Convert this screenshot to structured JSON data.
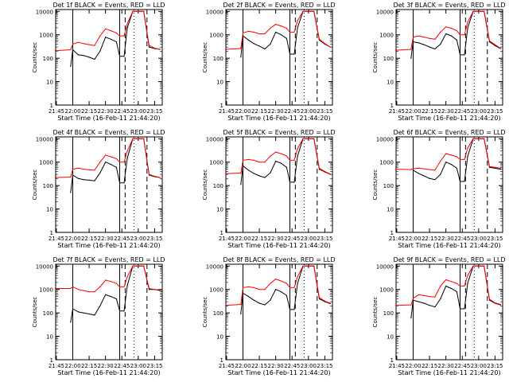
{
  "xlabel": "Start Time (16-Feb-11 21:44:20)",
  "ylabel": "Counts/sec",
  "x_ticks": [
    "21:45",
    "22:00",
    "22:15",
    "22:30",
    "22:45",
    "23:00",
    "23:15"
  ],
  "y_ticks": [
    "1",
    "10",
    "100",
    "1000",
    "10000"
  ],
  "colors": {
    "events": "#000000",
    "lld": "#ff0000"
  },
  "chart_data": [
    {
      "type": "line",
      "title": "Det  1f  BLACK = Events, RED = LLD",
      "xlim": [
        "21:44:20",
        "23:22:00"
      ],
      "ylim": [
        1,
        12000
      ],
      "yscale": "log",
      "x": [
        "21:44",
        "21:58",
        "22:00",
        "22:05",
        "22:10",
        "22:15",
        "22:20",
        "22:25",
        "22:30",
        "22:35",
        "22:40",
        "22:43",
        "22:47",
        "22:50",
        "22:55",
        "23:00",
        "23:05",
        "23:10",
        "23:15",
        "23:20"
      ],
      "series": [
        {
          "name": "Events",
          "values": [
            null,
            45,
            230,
            140,
            130,
            110,
            90,
            200,
            800,
            650,
            500,
            120,
            120,
            2000,
            10000,
            10000,
            10000,
            300,
            260,
            240
          ]
        },
        {
          "name": "LLD",
          "values": [
            210,
            230,
            400,
            480,
            420,
            380,
            350,
            900,
            1800,
            1500,
            1200,
            900,
            900,
            3000,
            10000,
            10000,
            10000,
            350,
            270,
            240
          ]
        }
      ]
    },
    {
      "type": "line",
      "title": "Det  2f  BLACK = Events, RED = LLD",
      "xlim": [
        "21:44:20",
        "23:22:00"
      ],
      "ylim": [
        1,
        12000
      ],
      "yscale": "log",
      "x": [
        "21:44",
        "21:58",
        "22:00",
        "22:05",
        "22:10",
        "22:15",
        "22:20",
        "22:25",
        "22:30",
        "22:35",
        "22:40",
        "22:43",
        "22:47",
        "22:50",
        "22:55",
        "23:00",
        "23:05",
        "23:10",
        "23:15",
        "23:20"
      ],
      "series": [
        {
          "name": "Events",
          "values": [
            null,
            110,
            900,
            600,
            420,
            330,
            250,
            400,
            1300,
            1000,
            700,
            150,
            150,
            2000,
            10000,
            10000,
            10000,
            600,
            400,
            300
          ]
        },
        {
          "name": "LLD",
          "values": [
            240,
            260,
            1200,
            1400,
            1300,
            1100,
            1100,
            1900,
            2800,
            2400,
            1900,
            1300,
            1300,
            4000,
            10000,
            10000,
            10000,
            650,
            420,
            300
          ]
        }
      ]
    },
    {
      "type": "line",
      "title": "Det  3f  BLACK = Events, RED = LLD",
      "xlim": [
        "21:44:20",
        "23:22:00"
      ],
      "ylim": [
        1,
        12000
      ],
      "yscale": "log",
      "x": [
        "21:44",
        "21:58",
        "22:00",
        "22:05",
        "22:10",
        "22:15",
        "22:20",
        "22:25",
        "22:30",
        "22:35",
        "22:40",
        "22:43",
        "22:47",
        "22:50",
        "22:55",
        "23:00",
        "23:05",
        "23:10",
        "23:15",
        "23:20"
      ],
      "series": [
        {
          "name": "Events",
          "values": [
            null,
            100,
            500,
            450,
            380,
            300,
            250,
            400,
            1100,
            900,
            600,
            140,
            140,
            2000,
            10000,
            10000,
            10000,
            500,
            350,
            260
          ]
        },
        {
          "name": "LLD",
          "values": [
            220,
            240,
            800,
            900,
            800,
            700,
            650,
            1300,
            2200,
            1900,
            1500,
            1000,
            1000,
            3500,
            10000,
            10000,
            10000,
            550,
            380,
            270
          ]
        }
      ]
    },
    {
      "type": "line",
      "title": "Det  4f  BLACK = Events, RED = LLD",
      "xlim": [
        "21:44:20",
        "23:22:00"
      ],
      "ylim": [
        1,
        12000
      ],
      "yscale": "log",
      "x": [
        "21:44",
        "21:58",
        "22:00",
        "22:05",
        "22:10",
        "22:15",
        "22:20",
        "22:25",
        "22:30",
        "22:35",
        "22:40",
        "22:43",
        "22:47",
        "22:50",
        "22:55",
        "23:00",
        "23:05",
        "23:10",
        "23:15",
        "23:20"
      ],
      "series": [
        {
          "name": "Events",
          "values": [
            null,
            50,
            280,
            200,
            180,
            170,
            160,
            350,
            1000,
            800,
            600,
            130,
            130,
            1500,
            10000,
            10000,
            10000,
            280,
            240,
            220
          ]
        },
        {
          "name": "LLD",
          "values": [
            220,
            230,
            500,
            560,
            500,
            470,
            450,
            1000,
            2000,
            1700,
            1400,
            1000,
            1000,
            3000,
            10000,
            10000,
            10000,
            300,
            250,
            220
          ]
        }
      ]
    },
    {
      "type": "line",
      "title": "Det  5f  BLACK = Events, RED = LLD",
      "xlim": [
        "21:44:20",
        "23:22:00"
      ],
      "ylim": [
        1,
        12000
      ],
      "yscale": "log",
      "x": [
        "21:44",
        "21:58",
        "22:00",
        "22:05",
        "22:10",
        "22:15",
        "22:20",
        "22:25",
        "22:30",
        "22:35",
        "22:40",
        "22:43",
        "22:47",
        "22:50",
        "22:55",
        "23:00",
        "23:05",
        "23:10",
        "23:15",
        "23:20"
      ],
      "series": [
        {
          "name": "Events",
          "values": [
            null,
            110,
            700,
            450,
            330,
            260,
            220,
            350,
            1100,
            900,
            600,
            140,
            140,
            1800,
            10000,
            10000,
            10000,
            500,
            380,
            300
          ]
        },
        {
          "name": "LLD",
          "values": [
            320,
            340,
            1200,
            1300,
            1200,
            1000,
            1000,
            1800,
            2700,
            2300,
            1800,
            1200,
            1200,
            3800,
            10000,
            10000,
            10000,
            550,
            400,
            310
          ]
        }
      ]
    },
    {
      "type": "line",
      "title": "Det  6f  BLACK = Events, RED = LLD",
      "xlim": [
        "21:44:20",
        "23:22:00"
      ],
      "ylim": [
        1,
        12000
      ],
      "yscale": "log",
      "x": [
        "21:44",
        "21:58",
        "22:00",
        "22:05",
        "22:10",
        "22:15",
        "22:20",
        "22:25",
        "22:30",
        "22:35",
        "22:40",
        "22:43",
        "22:47",
        "22:50",
        "22:55",
        "23:00",
        "23:05",
        "23:10",
        "23:15",
        "23:20"
      ],
      "series": [
        {
          "name": "Events",
          "values": [
            null,
            null,
            450,
            330,
            260,
            200,
            180,
            300,
            1000,
            800,
            550,
            150,
            150,
            1800,
            10000,
            10000,
            10000,
            600,
            550,
            500
          ]
        },
        {
          "name": "LLD",
          "values": [
            500,
            480,
            520,
            560,
            520,
            480,
            460,
            1100,
            2300,
            2000,
            1700,
            1300,
            1300,
            4000,
            10000,
            10000,
            10000,
            650,
            600,
            560
          ]
        }
      ]
    },
    {
      "type": "line",
      "title": "Det  7f  BLACK = Events, RED = LLD",
      "xlim": [
        "21:44:20",
        "23:22:00"
      ],
      "ylim": [
        1,
        12000
      ],
      "yscale": "log",
      "x": [
        "21:44",
        "21:58",
        "22:00",
        "22:05",
        "22:10",
        "22:15",
        "22:20",
        "22:25",
        "22:30",
        "22:35",
        "22:40",
        "22:43",
        "22:47",
        "22:50",
        "22:55",
        "23:00",
        "23:05",
        "23:10",
        "23:15",
        "23:20"
      ],
      "series": [
        {
          "name": "Events",
          "values": [
            null,
            40,
            150,
            110,
            100,
            90,
            80,
            200,
            600,
            500,
            400,
            120,
            120,
            1500,
            10000,
            10000,
            10000,
            1000,
            1000,
            900
          ]
        },
        {
          "name": "LLD",
          "values": [
            1100,
            1100,
            1300,
            1000,
            900,
            800,
            800,
            1300,
            2500,
            2200,
            1800,
            1300,
            1300,
            3500,
            10000,
            10000,
            10000,
            1100,
            1000,
            950
          ]
        }
      ]
    },
    {
      "type": "line",
      "title": "Det  8f  BLACK = Events, RED = LLD",
      "xlim": [
        "21:44:20",
        "23:22:00"
      ],
      "ylim": [
        1,
        12000
      ],
      "yscale": "log",
      "x": [
        "21:44",
        "21:58",
        "22:00",
        "22:05",
        "22:10",
        "22:15",
        "22:20",
        "22:25",
        "22:30",
        "22:35",
        "22:40",
        "22:43",
        "22:47",
        "22:50",
        "22:55",
        "23:00",
        "23:05",
        "23:10",
        "23:15",
        "23:20"
      ],
      "series": [
        {
          "name": "Events",
          "values": [
            null,
            90,
            700,
            500,
            350,
            260,
            220,
            350,
            1000,
            800,
            550,
            140,
            140,
            1800,
            10000,
            10000,
            10000,
            400,
            300,
            250
          ]
        },
        {
          "name": "LLD",
          "values": [
            210,
            230,
            1200,
            1300,
            1200,
            1000,
            1000,
            1800,
            2800,
            2300,
            1800,
            1200,
            1200,
            3500,
            10000,
            10000,
            10000,
            450,
            320,
            260
          ]
        }
      ]
    },
    {
      "type": "line",
      "title": "Det  9f  BLACK = Events, RED = LLD",
      "xlim": [
        "21:44:20",
        "23:22:00"
      ],
      "ylim": [
        1,
        12000
      ],
      "yscale": "log",
      "x": [
        "21:44",
        "21:58",
        "22:00",
        "22:05",
        "22:10",
        "22:15",
        "22:20",
        "22:25",
        "22:30",
        "22:35",
        "22:40",
        "22:43",
        "22:47",
        "22:50",
        "22:55",
        "23:00",
        "23:05",
        "23:10",
        "23:15",
        "23:20"
      ],
      "series": [
        {
          "name": "Events",
          "values": [
            null,
            60,
            350,
            300,
            260,
            210,
            180,
            400,
            1400,
            1100,
            800,
            150,
            150,
            1900,
            10000,
            10000,
            10000,
            350,
            260,
            220
          ]
        },
        {
          "name": "LLD",
          "values": [
            210,
            220,
            420,
            600,
            550,
            500,
            480,
            1400,
            2600,
            2200,
            1800,
            1400,
            1400,
            4000,
            10000,
            10000,
            10000,
            380,
            270,
            230
          ]
        }
      ]
    }
  ]
}
